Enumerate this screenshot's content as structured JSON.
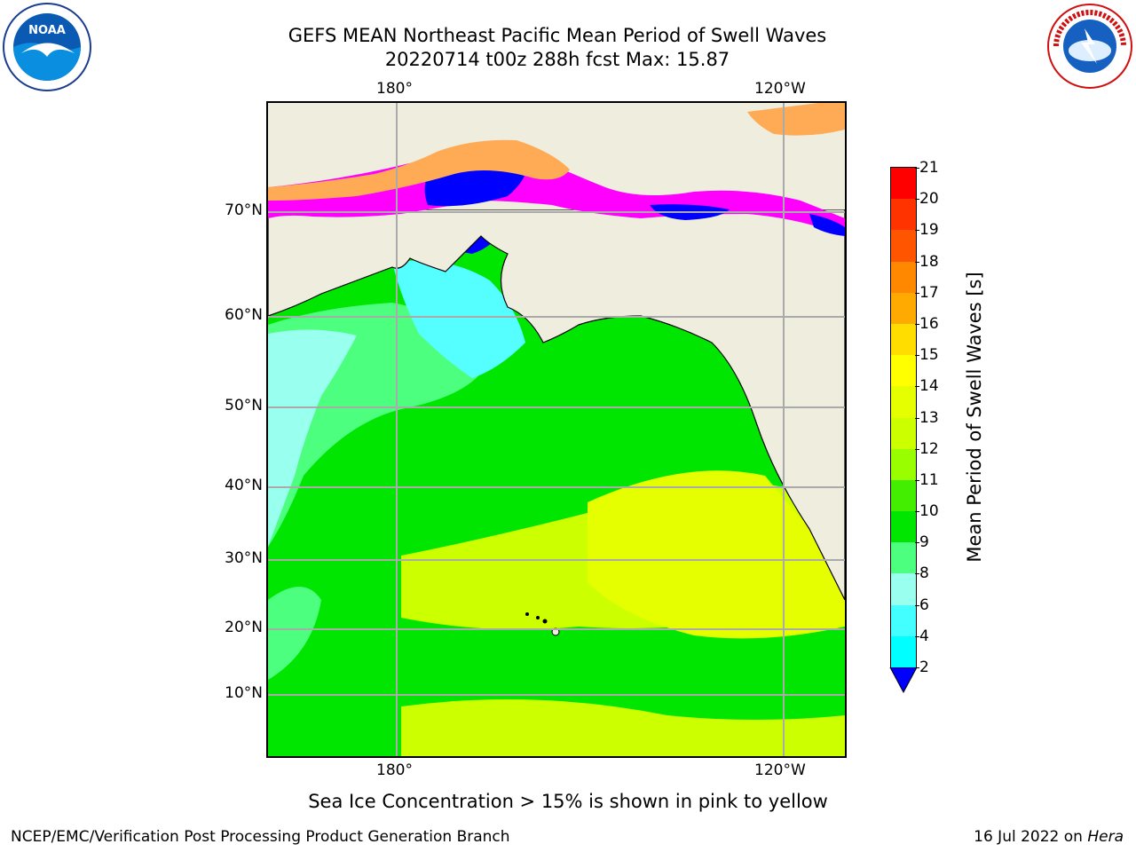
{
  "title": {
    "line1": "GEFS MEAN Northeast Pacific Mean Period of Swell Waves",
    "line2": "20220714 t00z 288h fcst   Max: 15.87"
  },
  "logos": {
    "left_text": "NOAA",
    "right_text": "NATIONAL WEATHER SERVICE"
  },
  "map": {
    "lon_labels_top": [
      "180°",
      "120°W"
    ],
    "lon_labels_bottom": [
      "180°",
      "120°W"
    ],
    "lat_labels": [
      "70°N",
      "60°N",
      "50°N",
      "40°N",
      "30°N",
      "20°N",
      "10°N"
    ],
    "grid": true,
    "land_color": "#efedde",
    "ocean_colors": {
      "green": "#00e600",
      "light_green": "#4dff7f",
      "cyan": "#55ffff",
      "yellow": "#e6ff00",
      "yellow_green": "#b3ff00",
      "blue": "#0000ff",
      "magenta": "#ff00ff",
      "orange": "#ffaa55"
    }
  },
  "colorbar": {
    "label": "Mean Period of Swell Waves [s]",
    "ticks": [
      "21",
      "20",
      "19",
      "18",
      "17",
      "16",
      "15",
      "14",
      "13",
      "12",
      "11",
      "10",
      "9",
      "8",
      "6",
      "4",
      "2"
    ],
    "colors": [
      "#ff0000",
      "#ff3300",
      "#ff5500",
      "#ff8800",
      "#ffaa00",
      "#ffdd00",
      "#ffff00",
      "#e6ff00",
      "#ccff00",
      "#99ff00",
      "#44ee00",
      "#00e600",
      "#4dff7f",
      "#99ffee",
      "#44ffff",
      "#00ffff",
      "#00ddff",
      "#0066ff"
    ],
    "extend_color": "#0000ff"
  },
  "note": "Sea Ice Concentration > 15% is shown in pink to yellow",
  "footer": {
    "left": "NCEP/EMC/Verification Post Processing Product Generation Branch",
    "right_date": "16 Jul 2022 on ",
    "right_host": "Hera"
  }
}
